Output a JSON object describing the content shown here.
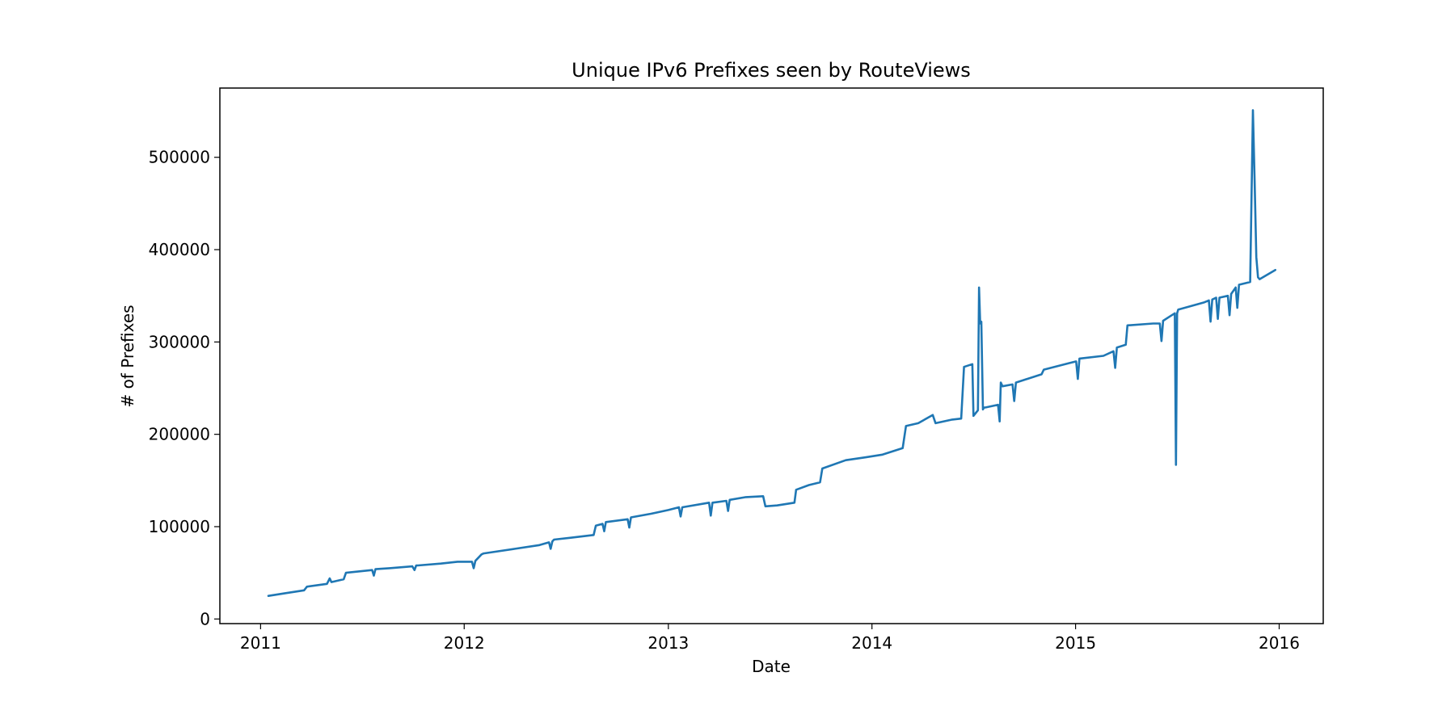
{
  "chart_data": {
    "type": "line",
    "title": "Unique IPv6 Prefixes seen by RouteViews",
    "xlabel": "Date",
    "ylabel": "# of Prefixes",
    "xlim": [
      "2010-10-20",
      "2016-03-20"
    ],
    "ylim": [
      -5000,
      575000
    ],
    "grid": false,
    "legend": "none",
    "x_ticks": [
      {
        "value": "2011-01-01",
        "label": "2011"
      },
      {
        "value": "2012-01-01",
        "label": "2012"
      },
      {
        "value": "2013-01-01",
        "label": "2013"
      },
      {
        "value": "2014-01-01",
        "label": "2014"
      },
      {
        "value": "2015-01-01",
        "label": "2015"
      },
      {
        "value": "2016-01-01",
        "label": "2016"
      }
    ],
    "y_ticks": [
      {
        "value": 0,
        "label": "0"
      },
      {
        "value": 100000,
        "label": "100000"
      },
      {
        "value": 200000,
        "label": "200000"
      },
      {
        "value": 300000,
        "label": "300000"
      },
      {
        "value": 400000,
        "label": "400000"
      },
      {
        "value": 500000,
        "label": "500000"
      }
    ],
    "series": [
      {
        "color": "#1f77b4",
        "x": [
          "2011-01-15",
          "2011-02-15",
          "2011-03-20",
          "2011-03-25",
          "2011-04-30",
          "2011-05-05",
          "2011-05-08",
          "2011-05-30",
          "2011-06-03",
          "2011-07-20",
          "2011-07-23",
          "2011-07-26",
          "2011-08-20",
          "2011-09-30",
          "2011-10-04",
          "2011-10-07",
          "2011-10-10",
          "2011-11-20",
          "2011-12-20",
          "2012-01-15",
          "2012-01-18",
          "2012-01-21",
          "2012-02-01",
          "2012-02-05",
          "2012-04-01",
          "2012-05-15",
          "2012-06-01",
          "2012-06-04",
          "2012-06-07",
          "2012-06-10",
          "2012-07-10",
          "2012-08-20",
          "2012-08-24",
          "2012-09-05",
          "2012-09-08",
          "2012-09-11",
          "2012-10-20",
          "2012-10-23",
          "2012-10-26",
          "2012-12-01",
          "2013-01-01",
          "2013-01-20",
          "2013-01-23",
          "2013-01-26",
          "2013-03-15",
          "2013-03-18",
          "2013-03-21",
          "2013-04-15",
          "2013-04-18",
          "2013-04-21",
          "2013-05-20",
          "2013-06-20",
          "2013-06-24",
          "2013-07-15",
          "2013-08-15",
          "2013-08-18",
          "2013-09-10",
          "2013-09-30",
          "2013-10-04",
          "2013-11-15",
          "2013-12-20",
          "2014-01-20",
          "2014-02-25",
          "2014-03-03",
          "2014-03-25",
          "2014-04-20",
          "2014-04-25",
          "2014-05-25",
          "2014-06-10",
          "2014-06-15",
          "2014-06-30",
          "2014-07-02",
          "2014-07-10",
          "2014-07-12",
          "2014-07-14",
          "2014-07-16",
          "2014-07-19",
          "2014-07-21",
          "2014-07-23",
          "2014-08-15",
          "2014-08-18",
          "2014-08-20",
          "2014-08-23",
          "2014-09-10",
          "2014-09-13",
          "2014-09-16",
          "2014-11-01",
          "2014-11-05",
          "2014-12-20",
          "2015-01-02",
          "2015-01-05",
          "2015-01-08",
          "2015-02-20",
          "2015-03-10",
          "2015-03-13",
          "2015-03-16",
          "2015-04-01",
          "2015-04-04",
          "2015-05-20",
          "2015-06-01",
          "2015-06-04",
          "2015-06-07",
          "2015-06-20",
          "2015-06-28",
          "2015-06-30",
          "2015-07-02",
          "2015-07-04",
          "2015-08-20",
          "2015-08-28",
          "2015-08-31",
          "2015-09-03",
          "2015-09-10",
          "2015-09-13",
          "2015-09-16",
          "2015-10-01",
          "2015-10-04",
          "2015-10-07",
          "2015-10-15",
          "2015-10-18",
          "2015-10-21",
          "2015-11-10",
          "2015-11-15",
          "2015-11-18",
          "2015-11-21",
          "2015-11-24",
          "2015-11-27",
          "2015-12-25"
        ],
        "y": [
          25000,
          28000,
          31000,
          35000,
          38000,
          44000,
          40000,
          43000,
          50000,
          53000,
          47000,
          54000,
          55000,
          57000,
          53000,
          58000,
          58000,
          60000,
          62000,
          62000,
          55000,
          63000,
          70000,
          71000,
          76000,
          80000,
          83000,
          76000,
          84000,
          86000,
          88000,
          91000,
          101000,
          103000,
          95000,
          105000,
          108000,
          99000,
          110000,
          114000,
          118000,
          121000,
          111000,
          121000,
          126000,
          112000,
          126000,
          128000,
          117000,
          129000,
          132000,
          133000,
          122000,
          123000,
          126000,
          140000,
          145000,
          148000,
          163000,
          172000,
          175000,
          178000,
          185000,
          209000,
          212000,
          221000,
          212000,
          216000,
          217000,
          273000,
          276000,
          220000,
          226000,
          359000,
          320000,
          322000,
          227000,
          229000,
          229000,
          232000,
          214000,
          256000,
          252000,
          254000,
          236000,
          256000,
          265000,
          270000,
          277000,
          279000,
          260000,
          282000,
          285000,
          290000,
          272000,
          294000,
          297000,
          318000,
          320000,
          320000,
          301000,
          323000,
          328000,
          331000,
          167000,
          331000,
          335000,
          343000,
          345000,
          322000,
          346000,
          348000,
          325000,
          348000,
          350000,
          329000,
          352000,
          359000,
          337000,
          362000,
          365000,
          551000,
          475000,
          392000,
          370000,
          368000,
          378000
        ]
      }
    ]
  }
}
